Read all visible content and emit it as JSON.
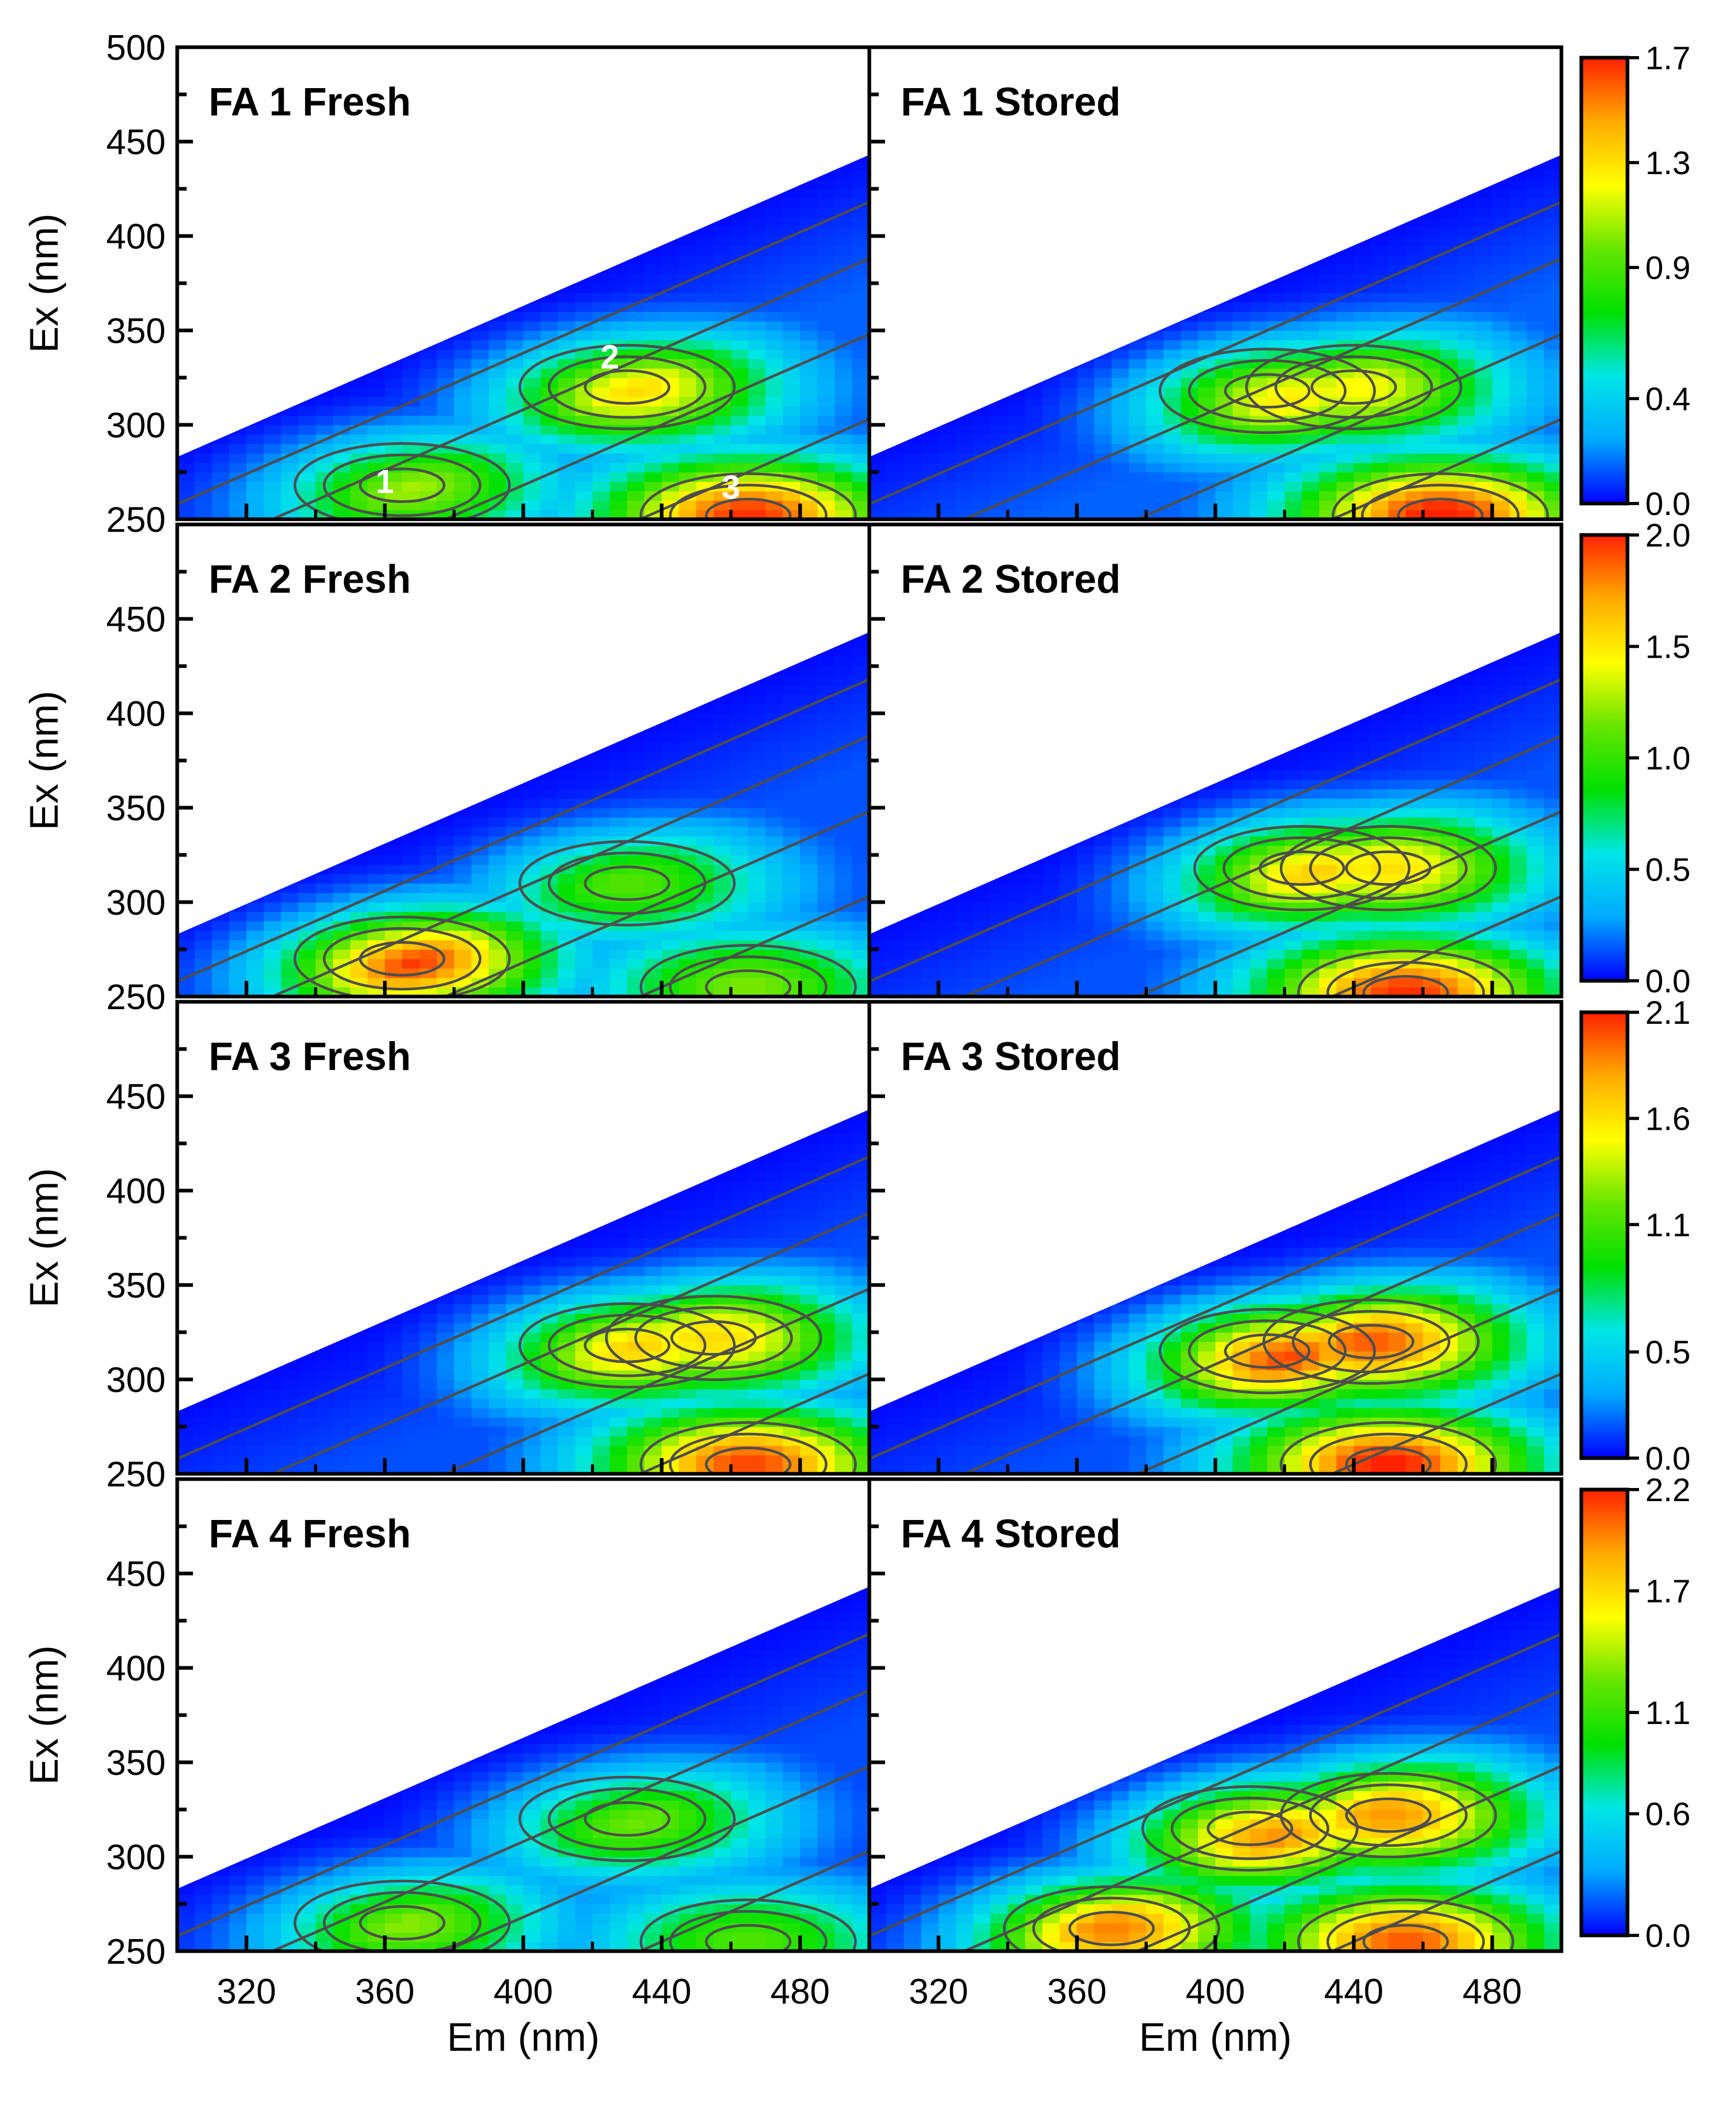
{
  "chart_data": {
    "type": "heatmap",
    "figure_type": "excitation-emission matrix contour plots",
    "xlabel": "Em (nm)",
    "ylabel": "Ex (nm)",
    "xlim": [
      300,
      500
    ],
    "ylim": [
      250,
      500
    ],
    "xticks": [
      "320",
      "360",
      "400",
      "440",
      "480"
    ],
    "yticks_top_row": [
      "500",
      "450",
      "400",
      "350",
      "300",
      "250"
    ],
    "yticks_other_rows": [
      "450",
      "400",
      "350",
      "300",
      "250"
    ],
    "colormap": [
      "#0000ff",
      "#00aaff",
      "#00e6e6",
      "#00e000",
      "#66e600",
      "#ffff00",
      "#ffaa00",
      "#ff2200"
    ],
    "contour_line_color": "#4d4d4d",
    "grid": false,
    "legend": "colorbar at right of each row",
    "rows": [
      {
        "colorbar": {
          "min": 0.0,
          "max": 1.7,
          "ticks": [
            "0.0",
            "0.4",
            "0.9",
            "1.3",
            "1.7"
          ]
        },
        "panels": [
          {
            "title": "FA 1 Fresh",
            "peak_labels": [
              {
                "text": "1",
                "em": 360,
                "ex": 270
              },
              {
                "text": "2",
                "em": 425,
                "ex": 336
              },
              {
                "text": "3",
                "em": 460,
                "ex": 267
              }
            ],
            "peaks": [
              {
                "em": 365,
                "ex": 268,
                "value": 1.0
              },
              {
                "em": 430,
                "ex": 320,
                "value": 1.25
              },
              {
                "em": 465,
                "ex": 252,
                "value": 1.6
              }
            ]
          },
          {
            "title": "FA 1 Stored",
            "peaks": [
              {
                "em": 415,
                "ex": 318,
                "value": 1.3
              },
              {
                "em": 440,
                "ex": 320,
                "value": 1.15
              },
              {
                "em": 465,
                "ex": 252,
                "value": 1.65
              }
            ]
          }
        ]
      },
      {
        "colorbar": {
          "min": 0.0,
          "max": 2.0,
          "ticks": [
            "0.0",
            "0.5",
            "1.0",
            "1.5",
            "2.0"
          ]
        },
        "panels": [
          {
            "title": "FA 2 Fresh",
            "peaks": [
              {
                "em": 365,
                "ex": 270,
                "value": 1.9
              },
              {
                "em": 430,
                "ex": 310,
                "value": 1.0
              },
              {
                "em": 465,
                "ex": 255,
                "value": 1.1
              }
            ]
          },
          {
            "title": "FA 2 Stored",
            "peaks": [
              {
                "em": 425,
                "ex": 318,
                "value": 1.55
              },
              {
                "em": 450,
                "ex": 318,
                "value": 1.45
              },
              {
                "em": 455,
                "ex": 252,
                "value": 1.9
              }
            ]
          }
        ]
      },
      {
        "colorbar": {
          "min": 0.0,
          "max": 2.1,
          "ticks": [
            "0.0",
            "0.5",
            "1.1",
            "1.6",
            "2.1"
          ]
        },
        "panels": [
          {
            "title": "FA 3 Fresh",
            "peaks": [
              {
                "em": 430,
                "ex": 318,
                "value": 1.6
              },
              {
                "em": 455,
                "ex": 322,
                "value": 1.55
              },
              {
                "em": 465,
                "ex": 255,
                "value": 1.95
              }
            ]
          },
          {
            "title": "FA 3 Stored",
            "peaks": [
              {
                "em": 415,
                "ex": 315,
                "value": 2.05
              },
              {
                "em": 445,
                "ex": 320,
                "value": 1.9
              },
              {
                "em": 450,
                "ex": 255,
                "value": 2.05
              }
            ]
          }
        ]
      },
      {
        "colorbar": {
          "min": 0.0,
          "max": 2.2,
          "ticks": [
            "0.0",
            "0.6",
            "1.1",
            "1.7",
            "2.2"
          ]
        },
        "panels": [
          {
            "title": "FA 4 Fresh",
            "peaks": [
              {
                "em": 365,
                "ex": 265,
                "value": 1.25
              },
              {
                "em": 430,
                "ex": 320,
                "value": 1.2
              },
              {
                "em": 465,
                "ex": 255,
                "value": 1.1
              }
            ]
          },
          {
            "title": "FA 4 Stored",
            "peaks": [
              {
                "em": 410,
                "ex": 315,
                "value": 2.05
              },
              {
                "em": 450,
                "ex": 322,
                "value": 1.85
              },
              {
                "em": 370,
                "ex": 262,
                "value": 1.9
              },
              {
                "em": 455,
                "ex": 255,
                "value": 2.0
              }
            ]
          }
        ]
      }
    ]
  }
}
